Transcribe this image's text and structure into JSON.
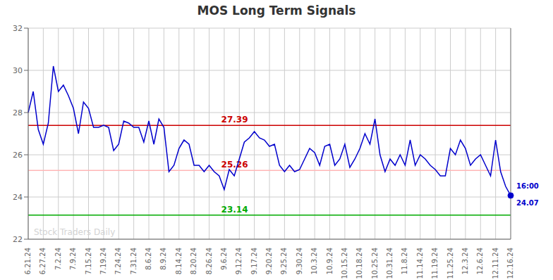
{
  "chart_data": {
    "type": "line",
    "title": "MOS Long Term Signals",
    "watermark": "Stock Traders Daily",
    "grid": true,
    "ylim": [
      22,
      32
    ],
    "yticks": [
      22,
      24,
      26,
      28,
      30,
      32
    ],
    "categories": [
      "6.21.24",
      null,
      null,
      "6.27.24",
      null,
      null,
      "7.2.24",
      null,
      null,
      "7.9.24",
      null,
      null,
      "7.15.24",
      null,
      null,
      "7.19.24",
      null,
      null,
      "7.24.24",
      null,
      null,
      "7.31.24",
      null,
      null,
      "8.6.24",
      null,
      null,
      "8.9.24",
      null,
      null,
      "8.14.24",
      null,
      null,
      "8.20.24",
      null,
      null,
      "8.26.24",
      null,
      null,
      "9.6.24",
      null,
      null,
      "9.12.24",
      null,
      null,
      "9.17.24",
      null,
      null,
      "9.20.24",
      null,
      null,
      "9.25.24",
      null,
      null,
      "9.30.24",
      null,
      null,
      "10.3.24",
      null,
      null,
      "10.9.24",
      null,
      null,
      "10.15.24",
      null,
      null,
      "10.18.24",
      null,
      null,
      "10.25.24",
      null,
      null,
      "10.31.24",
      null,
      null,
      "11.8.24",
      null,
      null,
      "11.14.24",
      null,
      null,
      "11.19.24",
      null,
      null,
      "11.25.24",
      null,
      null,
      "12.3.24",
      null,
      null,
      "12.6.24",
      null,
      null,
      "12.11.24",
      null,
      null,
      "12.16.24"
    ],
    "color": "#0000cc",
    "values": [
      28.0,
      29.0,
      27.2,
      26.5,
      27.5,
      30.2,
      29.0,
      29.3,
      28.8,
      28.2,
      27.0,
      28.5,
      28.2,
      27.3,
      27.3,
      27.4,
      27.3,
      26.2,
      26.5,
      27.6,
      27.5,
      27.3,
      27.3,
      26.6,
      27.6,
      26.5,
      27.7,
      27.3,
      25.2,
      25.5,
      26.3,
      26.7,
      26.5,
      25.5,
      25.5,
      25.2,
      25.5,
      25.2,
      25.0,
      24.35,
      25.3,
      25.0,
      25.8,
      26.6,
      26.8,
      27.1,
      26.8,
      26.7,
      26.4,
      26.5,
      25.5,
      25.2,
      25.5,
      25.2,
      25.3,
      25.8,
      26.3,
      26.1,
      25.5,
      26.4,
      26.5,
      25.5,
      25.8,
      26.5,
      25.4,
      25.8,
      26.3,
      27.0,
      26.5,
      27.7,
      26.0,
      25.2,
      25.8,
      25.5,
      26.0,
      25.5,
      26.7,
      25.5,
      26.0,
      25.8,
      25.5,
      25.3,
      25.0,
      25.0,
      26.3,
      26.0,
      26.7,
      26.3,
      25.5,
      25.8,
      26.0,
      25.5,
      25.0,
      26.7,
      25.2,
      24.5,
      24.07
    ],
    "hlines": [
      {
        "value": 27.39,
        "label": "27.39",
        "color": "#cc0000",
        "label_color": "#cc0000"
      },
      {
        "value": 25.26,
        "label": "25.26",
        "color": "#ffb6b6",
        "label_color": "#cc0000"
      },
      {
        "value": 23.14,
        "label": "23.14",
        "color": "#00aa00",
        "label_color": "#00aa00"
      }
    ],
    "last_point": {
      "value": 24.07,
      "label": "24.07",
      "time_label": "16:00"
    }
  }
}
